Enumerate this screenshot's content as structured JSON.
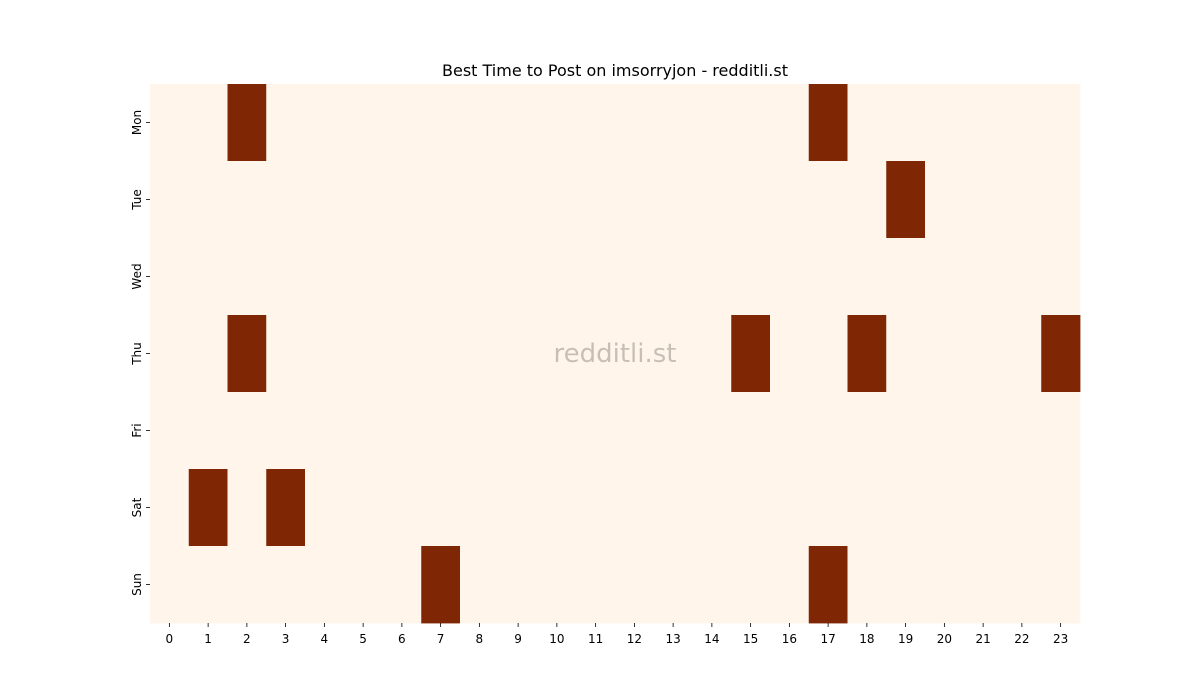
{
  "chart_data": {
    "type": "heatmap",
    "title": "Best Time to Post on imsorryjon - redditli.st",
    "watermark": "redditli.st",
    "xlabel": "",
    "ylabel": "",
    "x_categories": [
      "0",
      "1",
      "2",
      "3",
      "4",
      "5",
      "6",
      "7",
      "8",
      "9",
      "10",
      "11",
      "12",
      "13",
      "14",
      "15",
      "16",
      "17",
      "18",
      "19",
      "20",
      "21",
      "22",
      "23"
    ],
    "y_categories": [
      "Mon",
      "Tue",
      "Wed",
      "Thu",
      "Fri",
      "Sat",
      "Sun"
    ],
    "values": [
      [
        0,
        0,
        1,
        0,
        0,
        0,
        0,
        0,
        0,
        0,
        0,
        0,
        0,
        0,
        0,
        0,
        0,
        1,
        0,
        0,
        0,
        0,
        0,
        0
      ],
      [
        0,
        0,
        0,
        0,
        0,
        0,
        0,
        0,
        0,
        0,
        0,
        0,
        0,
        0,
        0,
        0,
        0,
        0,
        0,
        1,
        0,
        0,
        0,
        0
      ],
      [
        0,
        0,
        0,
        0,
        0,
        0,
        0,
        0,
        0,
        0,
        0,
        0,
        0,
        0,
        0,
        0,
        0,
        0,
        0,
        0,
        0,
        0,
        0,
        0
      ],
      [
        0,
        0,
        1,
        0,
        0,
        0,
        0,
        0,
        0,
        0,
        0,
        0,
        0,
        0,
        0,
        1,
        0,
        0,
        1,
        0,
        0,
        0,
        0,
        1
      ],
      [
        0,
        0,
        0,
        0,
        0,
        0,
        0,
        0,
        0,
        0,
        0,
        0,
        0,
        0,
        0,
        0,
        0,
        0,
        0,
        0,
        0,
        0,
        0,
        0
      ],
      [
        0,
        1,
        0,
        1,
        0,
        0,
        0,
        0,
        0,
        0,
        0,
        0,
        0,
        0,
        0,
        0,
        0,
        0,
        0,
        0,
        0,
        0,
        0,
        0
      ],
      [
        0,
        0,
        0,
        0,
        0,
        0,
        0,
        1,
        0,
        0,
        0,
        0,
        0,
        0,
        0,
        0,
        0,
        1,
        0,
        0,
        0,
        0,
        0,
        0
      ]
    ],
    "colors": {
      "low": "#fff5eb",
      "high": "#7f2704"
    },
    "grid": false,
    "legend": "none"
  }
}
